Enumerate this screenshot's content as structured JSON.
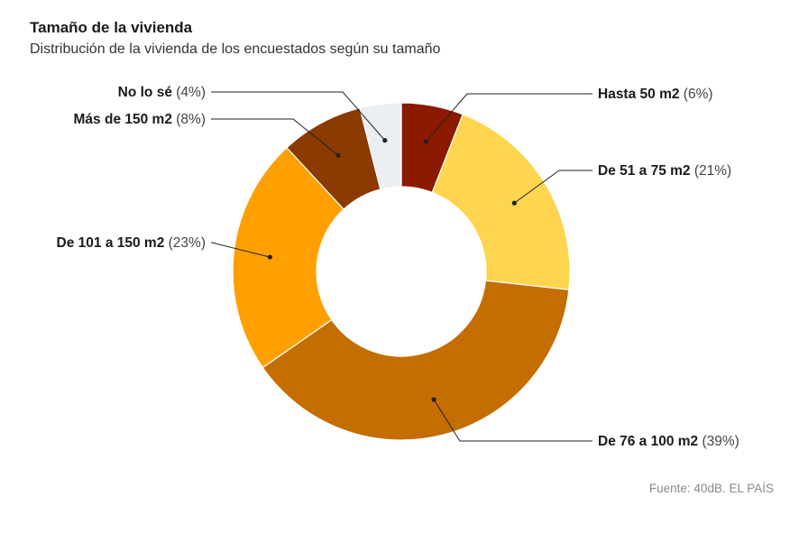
{
  "header": {
    "title": "Tamaño de la vivienda",
    "subtitle": "Distribución de la vivienda de los encuestados según su tamaño"
  },
  "source": "Fuente: 40dB. EL PAÍS",
  "chart_data": {
    "type": "pie",
    "donut": true,
    "title": "Tamaño de la vivienda",
    "subtitle": "Distribución de la vivienda de los encuestados según su tamaño",
    "categories": [
      "Hasta 50 m2",
      "De 51 a 75 m2",
      "De 76 a 100 m2",
      "De 101 a 150 m2",
      "Más de 150 m2",
      "No lo sé"
    ],
    "values": [
      6,
      21,
      39,
      23,
      8,
      4
    ],
    "labels": [
      "(6%)",
      "(21%)",
      "(39%)",
      "(23%)",
      "(8%)",
      "(4%)"
    ],
    "colors": [
      "#8B1A00",
      "#FFD54F",
      "#C46D00",
      "#FFA000",
      "#8B3A00",
      "#ECEFF1"
    ],
    "unit": "%"
  }
}
